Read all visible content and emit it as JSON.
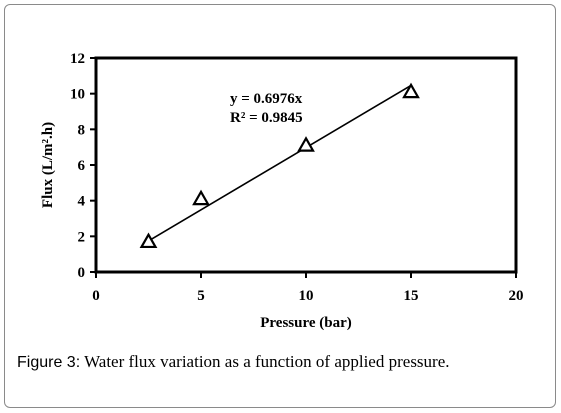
{
  "chart_data": {
    "type": "scatter",
    "x": [
      2.5,
      5,
      10,
      15
    ],
    "y": [
      1.7,
      4.1,
      7.1,
      10.1
    ],
    "xlabel": "Pressure (bar)",
    "ylabel": "Flux (L/m².h)",
    "xlim": [
      0,
      20
    ],
    "ylim": [
      0,
      12
    ],
    "xticks": [
      "0",
      "5",
      "10",
      "15",
      "20"
    ],
    "yticks": [
      "0",
      "2",
      "4",
      "6",
      "8",
      "10",
      "12"
    ],
    "trendline": {
      "slope": 0.6976,
      "equation": "y = 0.6976x",
      "r_squared": "R² = 0.9845"
    },
    "marker": "triangle-open",
    "grid": false,
    "legend": "none"
  },
  "caption": {
    "lead": "Figure 3:",
    "text": " Water flux variation as a function of applied pressure."
  }
}
